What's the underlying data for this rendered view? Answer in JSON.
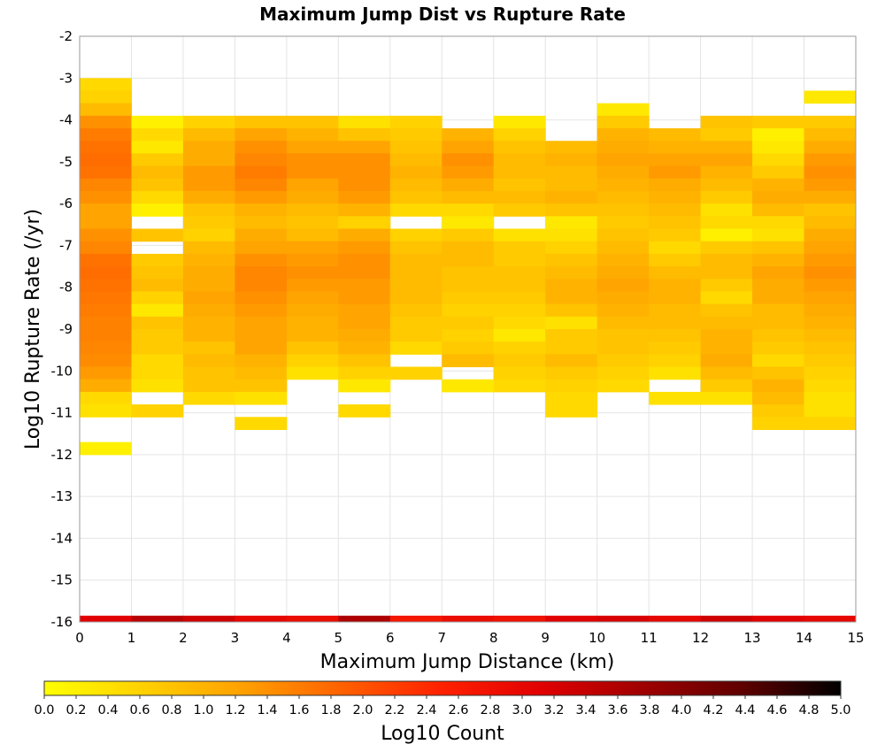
{
  "chart_data": {
    "type": "heatmap",
    "title": "Maximum Jump Dist vs Rupture Rate",
    "xlabel": "Maximum Jump Distance (km)",
    "ylabel": "Log10 Rupture Rate (/yr)",
    "xlim": [
      0,
      15
    ],
    "ylim": [
      -16,
      -2
    ],
    "x_ticks": [
      0,
      1,
      2,
      3,
      4,
      5,
      6,
      7,
      8,
      9,
      10,
      11,
      12,
      13,
      14,
      15
    ],
    "y_ticks": [
      -2,
      -3,
      -4,
      -5,
      -6,
      -7,
      -8,
      -9,
      -10,
      -11,
      -12,
      -13,
      -14,
      -15,
      -16
    ],
    "x_bin_width": 1,
    "y_bin_width": 0.3,
    "grid": true,
    "colorbar": {
      "label": "Log10 Count",
      "range": [
        0,
        5
      ],
      "ticks": [
        "0.0",
        "0.2",
        "0.4",
        "0.6",
        "0.8",
        "1.0",
        "1.2",
        "1.4",
        "1.6",
        "1.8",
        "2.0",
        "2.2",
        "2.4",
        "2.6",
        "2.8",
        "3.0",
        "3.2",
        "3.4",
        "3.6",
        "3.8",
        "4.0",
        "4.2",
        "4.4",
        "4.6",
        "4.8",
        "5.0"
      ],
      "colormap": [
        "#ffff00",
        "#ffd000",
        "#ffa000",
        "#ff6000",
        "#ff2000",
        "#e00000",
        "#a00000",
        "#600000",
        "#000000"
      ]
    },
    "columns": [
      {
        "x": 0,
        "y_start": -3.15,
        "values": [
          0.5,
          0.6,
          0.9,
          1.4,
          1.6,
          1.7,
          1.75,
          1.7,
          1.5,
          1.4,
          1.2,
          1.2,
          1.4,
          1.5,
          1.7,
          1.75,
          1.7,
          1.65,
          1.6,
          1.55,
          1.55,
          1.5,
          1.45,
          1.3,
          1.1,
          0.5,
          0.4,
          null,
          null,
          0.2
        ]
      },
      {
        "x": 1,
        "y_start": -4.05,
        "values": [
          0.2,
          0.5,
          0.3,
          0.7,
          0.9,
          0.8,
          0.5,
          0.2,
          null,
          0.8,
          null,
          0.7,
          0.8,
          0.9,
          0.6,
          0.3,
          0.8,
          0.7,
          0.7,
          0.5,
          0.5,
          0.4,
          null,
          0.6
        ]
      },
      {
        "x": 2,
        "y_start": -4.05,
        "values": [
          0.6,
          0.9,
          1.1,
          1.1,
          1.3,
          1.3,
          1.1,
          0.8,
          0.7,
          0.6,
          0.9,
          1.0,
          1.1,
          1.1,
          1.2,
          1.1,
          1.0,
          1.0,
          0.8,
          0.9,
          0.8,
          0.8,
          0.5
        ]
      },
      {
        "x": 3,
        "y_start": -4.05,
        "values": [
          0.8,
          1.2,
          1.4,
          1.5,
          1.6,
          1.5,
          1.3,
          1.0,
          0.9,
          1.1,
          1.2,
          1.4,
          1.5,
          1.5,
          1.4,
          1.3,
          1.2,
          1.2,
          1.2,
          1.0,
          0.9,
          0.8,
          0.4,
          null,
          0.5
        ]
      },
      {
        "x": 4,
        "y_start": -4.05,
        "values": [
          0.8,
          1.0,
          1.2,
          1.4,
          1.4,
          1.2,
          1.1,
          0.9,
          0.8,
          0.9,
          1.2,
          1.3,
          1.4,
          1.3,
          1.2,
          1.1,
          1.0,
          1.0,
          0.8,
          0.6,
          0.4
        ]
      },
      {
        "x": 5,
        "y_start": -4.05,
        "values": [
          0.4,
          0.8,
          1.2,
          1.4,
          1.4,
          1.4,
          1.3,
          1.0,
          0.6,
          1.1,
          1.3,
          1.4,
          1.4,
          1.3,
          1.3,
          1.2,
          1.2,
          1.1,
          1.0,
          0.8,
          0.6,
          0.3,
          null,
          0.5
        ]
      },
      {
        "x": 6,
        "y_start": -4.05,
        "values": [
          0.6,
          0.7,
          0.8,
          0.9,
          1.0,
          0.9,
          0.8,
          0.5,
          null,
          0.6,
          0.8,
          0.9,
          0.9,
          0.9,
          0.9,
          0.8,
          0.7,
          0.7,
          0.5,
          null,
          0.6
        ]
      },
      {
        "x": 7,
        "y_start": -4.35,
        "values": [
          1.0,
          1.2,
          1.4,
          1.3,
          1.1,
          0.9,
          0.5,
          0.3,
          0.7,
          0.9,
          0.9,
          0.8,
          0.8,
          0.7,
          0.6,
          0.7,
          0.6,
          0.7,
          0.9,
          null,
          0.3
        ]
      },
      {
        "x": 8,
        "y_start": -4.05,
        "values": [
          0.3,
          0.6,
          0.8,
          0.9,
          0.9,
          0.8,
          0.9,
          0.7,
          null,
          0.4,
          0.7,
          0.7,
          0.8,
          0.8,
          0.7,
          0.6,
          0.5,
          0.3,
          0.6,
          0.7,
          0.6,
          0.5
        ]
      },
      {
        "x": 9,
        "y_start": -4.65,
        "values": [
          0.9,
          1.0,
          0.9,
          0.9,
          1.0,
          0.8,
          0.3,
          0.4,
          0.6,
          0.8,
          0.9,
          1.0,
          1.0,
          0.8,
          0.4,
          0.7,
          0.7,
          0.9,
          0.7,
          0.6,
          0.5,
          0.5
        ]
      },
      {
        "x": 10,
        "y_start": -3.75,
        "values": [
          0.3,
          0.7,
          1.0,
          1.1,
          1.2,
          1.1,
          1.0,
          0.9,
          0.8,
          0.7,
          0.8,
          0.9,
          1.0,
          1.1,
          1.2,
          1.1,
          1.0,
          0.9,
          0.8,
          0.8,
          0.7,
          0.6,
          0.5
        ]
      },
      {
        "x": 11,
        "y_start": -4.35,
        "values": [
          0.9,
          1.0,
          1.2,
          1.3,
          1.1,
          1.0,
          0.9,
          0.8,
          0.7,
          0.5,
          0.7,
          0.9,
          1.0,
          1.0,
          0.9,
          0.9,
          0.8,
          0.7,
          0.6,
          0.4,
          null,
          0.4
        ]
      },
      {
        "x": 12,
        "y_start": -4.05,
        "values": [
          0.8,
          0.7,
          1.0,
          1.2,
          1.0,
          0.9,
          0.7,
          0.4,
          0.5,
          0.2,
          0.7,
          0.9,
          0.9,
          0.7,
          0.5,
          0.8,
          0.9,
          1.0,
          1.0,
          1.1,
          0.9,
          0.7,
          0.4
        ]
      },
      {
        "x": 13,
        "y_start": -4.05,
        "values": [
          0.7,
          0.2,
          0.3,
          0.5,
          0.7,
          1.0,
          1.1,
          0.9,
          0.5,
          0.4,
          0.8,
          1.0,
          1.2,
          1.1,
          1.1,
          0.9,
          0.9,
          0.8,
          0.7,
          0.5,
          0.8,
          1.0,
          0.9,
          0.7,
          0.6
        ]
      },
      {
        "x": 14,
        "y_start": -3.45,
        "values": [
          0.3,
          null,
          0.7,
          0.9,
          1.1,
          1.3,
          1.4,
          1.3,
          1.1,
          0.8,
          0.9,
          1.1,
          1.2,
          1.3,
          1.4,
          1.3,
          1.2,
          1.1,
          1.0,
          0.9,
          0.8,
          0.7,
          0.6,
          0.5,
          0.4,
          0.4,
          0.6
        ]
      }
    ],
    "floor_row": {
      "y_start": -16.1,
      "values": [
        3.1,
        3.5,
        3.3,
        3.0,
        2.9,
        3.6,
        2.7,
        2.9,
        2.8,
        3.1,
        3.2,
        3.0,
        3.3,
        3.1,
        3.0
      ]
    }
  }
}
